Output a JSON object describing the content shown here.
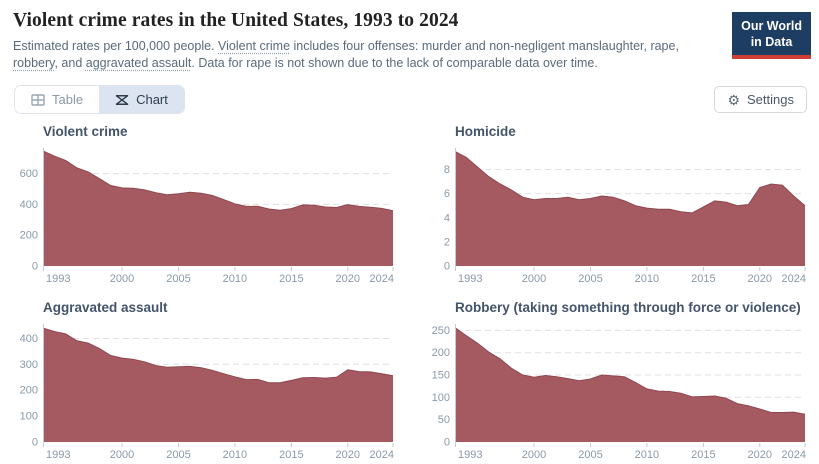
{
  "header": {
    "title": "Violent crime rates in the United States, 1993 to 2024",
    "subtitle_segments": [
      {
        "text": "Estimated rates per 100,000 people. "
      },
      {
        "text": "Violent crime",
        "underline": true
      },
      {
        "text": " includes four offenses: murder and non-negligent manslaughter, rape, "
      },
      {
        "text": "robbery",
        "underline": true
      },
      {
        "text": ", and "
      },
      {
        "text": "aggravated assault",
        "underline": true
      },
      {
        "text": ". Data for rape is not shown due to the lack of comparable data over time."
      }
    ],
    "logo": {
      "line1": "Our World",
      "line2": "in Data"
    }
  },
  "toolbar": {
    "tabs": [
      {
        "label": "Table",
        "active": false
      },
      {
        "label": "Chart",
        "active": true
      }
    ],
    "settings_label": "Settings"
  },
  "colors": {
    "area_fill": "#a55a62",
    "area_stroke": "#8f4750",
    "grid": "#e1e1e1",
    "axis": "#c5cad0",
    "tick_label": "#8b99a8",
    "logo_navy": "#1d3d63",
    "logo_red": "#cf3e35",
    "active_tab_bg": "#dbe4f0"
  },
  "chart_data": [
    {
      "id": "violent-crime",
      "type": "area",
      "title": "Violent crime",
      "x": [
        1993,
        1994,
        1995,
        1996,
        1997,
        1998,
        1999,
        2000,
        2001,
        2002,
        2003,
        2004,
        2005,
        2006,
        2007,
        2008,
        2009,
        2010,
        2011,
        2012,
        2013,
        2014,
        2015,
        2016,
        2017,
        2018,
        2019,
        2020,
        2021,
        2022,
        2023,
        2024
      ],
      "values": [
        747,
        714,
        685,
        637,
        611,
        567,
        523,
        507,
        505,
        494,
        476,
        463,
        469,
        479,
        472,
        458,
        431,
        404,
        387,
        388,
        370,
        362,
        373,
        397,
        394,
        383,
        380,
        399,
        387,
        381,
        374,
        359
      ],
      "ylabel": "rate per 100,000 people",
      "ylim": [
        0,
        760
      ],
      "yticks": [
        0,
        200,
        400,
        600
      ],
      "xticks": [
        1993,
        2000,
        2005,
        2010,
        2015,
        2020,
        2024
      ],
      "grid": "dashed-horizontal",
      "legend": "none"
    },
    {
      "id": "homicide",
      "type": "area",
      "title": "Homicide",
      "x": [
        1993,
        1994,
        1995,
        1996,
        1997,
        1998,
        1999,
        2000,
        2001,
        2002,
        2003,
        2004,
        2005,
        2006,
        2007,
        2008,
        2009,
        2010,
        2011,
        2012,
        2013,
        2014,
        2015,
        2016,
        2017,
        2018,
        2019,
        2020,
        2021,
        2022,
        2023,
        2024
      ],
      "values": [
        9.5,
        9.0,
        8.2,
        7.4,
        6.8,
        6.3,
        5.7,
        5.5,
        5.6,
        5.6,
        5.7,
        5.5,
        5.6,
        5.8,
        5.7,
        5.4,
        5.0,
        4.8,
        4.7,
        4.7,
        4.5,
        4.4,
        4.9,
        5.4,
        5.3,
        5.0,
        5.1,
        6.5,
        6.8,
        6.7,
        5.8,
        5.0
      ],
      "ylabel": "rate per 100,000 people",
      "ylim": [
        0,
        9.7
      ],
      "yticks": [
        0,
        2,
        4,
        6,
        8
      ],
      "xticks": [
        1993,
        2000,
        2005,
        2010,
        2015,
        2020,
        2024
      ],
      "grid": "dashed-horizontal",
      "legend": "none"
    },
    {
      "id": "aggravated-assault",
      "type": "area",
      "title": "Aggravated assault",
      "x": [
        1993,
        1994,
        1995,
        1996,
        1997,
        1998,
        1999,
        2000,
        2001,
        2002,
        2003,
        2004,
        2005,
        2006,
        2007,
        2008,
        2009,
        2010,
        2011,
        2012,
        2013,
        2014,
        2015,
        2016,
        2017,
        2018,
        2019,
        2020,
        2021,
        2022,
        2023,
        2024
      ],
      "values": [
        440,
        427,
        418,
        391,
        382,
        361,
        334,
        324,
        319,
        310,
        295,
        289,
        291,
        292,
        287,
        277,
        264,
        252,
        241,
        242,
        229,
        229,
        238,
        248,
        249,
        247,
        250,
        279,
        272,
        271,
        264,
        256
      ],
      "ylabel": "rate per 100,000 people",
      "ylim": [
        0,
        452
      ],
      "yticks": [
        0,
        100,
        200,
        300,
        400
      ],
      "xticks": [
        1993,
        2000,
        2005,
        2010,
        2015,
        2020,
        2024
      ],
      "grid": "dashed-horizontal",
      "legend": "none"
    },
    {
      "id": "robbery",
      "type": "area",
      "title": "Robbery (taking something through force or violence)",
      "x": [
        1993,
        1994,
        1995,
        1996,
        1997,
        1998,
        1999,
        2000,
        2001,
        2002,
        2003,
        2004,
        2005,
        2006,
        2007,
        2008,
        2009,
        2010,
        2011,
        2012,
        2013,
        2014,
        2015,
        2016,
        2017,
        2018,
        2019,
        2020,
        2021,
        2022,
        2023,
        2024
      ],
      "values": [
        256,
        238,
        221,
        201,
        186,
        165,
        150,
        145,
        149,
        146,
        142,
        137,
        141,
        150,
        148,
        146,
        133,
        119,
        114,
        113,
        109,
        101,
        102,
        103,
        98,
        86,
        81,
        74,
        66,
        66,
        67,
        62
      ],
      "ylabel": "rate per 100,000 people",
      "ylim": [
        0,
        262
      ],
      "yticks": [
        0,
        50,
        100,
        150,
        200,
        250
      ],
      "xticks": [
        1993,
        2000,
        2005,
        2010,
        2015,
        2020,
        2024
      ],
      "grid": "dashed-horizontal",
      "legend": "none"
    }
  ]
}
